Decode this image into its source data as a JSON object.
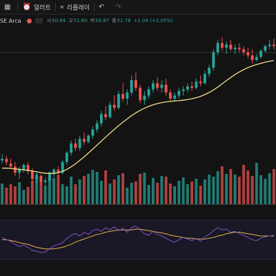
{
  "toolbar": {
    "alerts_label": "얼러트",
    "replay_label": "리플레이",
    "icons": [
      "indicators-icon",
      "alarm-clock-icon",
      "rewind-icon",
      "undo-icon",
      "redo-icon"
    ]
  },
  "legend": {
    "title": "SE Arca",
    "open_label": "시",
    "open_value": "50.94",
    "high_label": "고",
    "high_value": "51.80",
    "low_label": "저",
    "low_value": "50.87",
    "close_label": "종",
    "close_value": "51.78",
    "change": "+1.04 (+2.05%)"
  },
  "colors": {
    "up": "#26a69a",
    "down": "#ef5350",
    "ma": "#f5e08c",
    "oscillator": "#7e57c2",
    "signal": "#e6b84a"
  },
  "chart_data": {
    "type": "candlestick",
    "candles": [
      [
        44.4,
        44.8,
        44.2,
        44.5
      ],
      [
        44.5,
        44.7,
        44.1,
        44.3
      ],
      [
        44.2,
        44.5,
        43.9,
        44.0
      ],
      [
        44.0,
        44.3,
        43.4,
        43.6
      ],
      [
        43.6,
        44.0,
        43.2,
        43.8
      ],
      [
        43.8,
        44.2,
        43.6,
        44.1
      ],
      [
        44.1,
        44.3,
        43.5,
        43.7
      ],
      [
        43.7,
        43.9,
        43.0,
        43.2
      ],
      [
        43.2,
        43.6,
        42.9,
        43.4
      ],
      [
        43.4,
        43.5,
        42.8,
        43.0
      ],
      [
        43.0,
        43.3,
        42.8,
        43.1
      ],
      [
        43.1,
        43.6,
        43.0,
        43.5
      ],
      [
        43.5,
        43.9,
        43.3,
        43.8
      ],
      [
        43.8,
        44.0,
        43.4,
        43.6
      ],
      [
        43.6,
        44.4,
        43.5,
        44.3
      ],
      [
        44.3,
        45.0,
        44.1,
        44.9
      ],
      [
        44.9,
        45.7,
        44.7,
        45.5
      ],
      [
        45.5,
        45.8,
        45.0,
        45.2
      ],
      [
        45.2,
        46.0,
        45.0,
        45.8
      ],
      [
        45.8,
        46.2,
        45.4,
        45.6
      ],
      [
        45.6,
        46.1,
        45.5,
        46.0
      ],
      [
        46.0,
        46.6,
        45.8,
        46.4
      ],
      [
        46.4,
        47.0,
        46.2,
        46.8
      ],
      [
        46.8,
        47.6,
        46.6,
        47.4
      ],
      [
        47.4,
        47.9,
        47.0,
        47.2
      ],
      [
        47.2,
        48.2,
        47.1,
        48.0
      ],
      [
        48.0,
        48.6,
        47.6,
        47.8
      ],
      [
        47.8,
        48.9,
        47.7,
        48.7
      ],
      [
        48.7,
        49.4,
        48.2,
        48.4
      ],
      [
        48.4,
        49.0,
        48.0,
        48.8
      ],
      [
        48.8,
        49.9,
        48.6,
        49.6
      ],
      [
        49.6,
        50.1,
        48.9,
        49.1
      ],
      [
        49.1,
        49.3,
        48.1,
        48.3
      ],
      [
        48.3,
        48.9,
        48.0,
        48.6
      ],
      [
        48.6,
        49.2,
        48.4,
        49.0
      ],
      [
        49.0,
        49.6,
        48.8,
        49.4
      ],
      [
        49.4,
        49.8,
        48.9,
        49.1
      ],
      [
        49.1,
        49.6,
        48.8,
        49.3
      ],
      [
        49.3,
        49.7,
        48.6,
        48.8
      ],
      [
        48.8,
        49.0,
        48.2,
        48.4
      ],
      [
        48.4,
        48.8,
        48.2,
        48.6
      ],
      [
        48.6,
        49.1,
        48.4,
        48.9
      ],
      [
        48.9,
        49.2,
        48.6,
        49.0
      ],
      [
        49.0,
        49.4,
        48.8,
        49.2
      ],
      [
        49.2,
        49.5,
        48.9,
        49.1
      ],
      [
        49.1,
        49.7,
        49.0,
        49.5
      ],
      [
        49.5,
        49.9,
        49.2,
        49.4
      ],
      [
        49.4,
        50.2,
        49.3,
        50.0
      ],
      [
        50.0,
        50.6,
        49.8,
        50.4
      ],
      [
        50.4,
        51.6,
        50.2,
        51.4
      ],
      [
        51.4,
        52.2,
        51.2,
        52.0
      ],
      [
        52.0,
        52.4,
        51.5,
        51.7
      ],
      [
        51.7,
        52.1,
        51.3,
        51.9
      ],
      [
        51.9,
        52.2,
        51.5,
        51.6
      ],
      [
        51.6,
        51.9,
        51.3,
        51.7
      ],
      [
        51.7,
        52.0,
        51.4,
        51.6
      ],
      [
        51.6,
        51.8,
        51.2,
        51.4
      ],
      [
        51.4,
        51.7,
        51.0,
        51.2
      ],
      [
        51.2,
        51.6,
        50.7,
        50.9
      ],
      [
        50.9,
        51.3,
        50.8,
        51.1
      ],
      [
        51.1,
        51.6,
        51.0,
        51.5
      ],
      [
        51.5,
        51.9,
        51.4,
        51.8
      ],
      [
        51.8,
        52.2,
        51.6,
        51.9
      ],
      [
        51.9,
        52.3,
        51.6,
        51.8
      ]
    ],
    "moving_average": [
      43.9,
      43.9,
      43.88,
      43.85,
      43.82,
      43.79,
      43.75,
      43.71,
      43.66,
      43.61,
      43.57,
      43.55,
      43.56,
      43.6,
      43.69,
      43.82,
      43.99,
      44.18,
      44.4,
      44.63,
      44.88,
      45.13,
      45.39,
      45.65,
      45.91,
      46.16,
      46.41,
      46.65,
      46.88,
      47.09,
      47.3,
      47.48,
      47.64,
      47.78,
      47.9,
      48.0,
      48.08,
      48.14,
      48.19,
      48.22,
      48.25,
      48.27,
      48.3,
      48.34,
      48.39,
      48.46,
      48.55,
      48.66,
      48.8,
      48.96,
      49.15,
      49.36,
      49.57,
      49.77,
      49.96,
      50.13,
      50.28,
      50.41,
      50.52,
      50.61,
      50.69,
      50.76,
      50.82,
      50.87
    ],
    "volume": [
      30,
      24,
      29,
      26,
      32,
      21,
      25,
      34,
      44,
      33,
      27,
      47,
      38,
      42,
      29,
      26,
      40,
      29,
      36,
      41,
      44,
      50,
      47,
      34,
      49,
      30,
      36,
      42,
      45,
      24,
      31,
      33,
      44,
      46,
      28,
      38,
      31,
      41,
      40,
      30,
      26,
      34,
      39,
      29,
      33,
      37,
      27,
      36,
      43,
      40,
      48,
      55,
      44,
      51,
      43,
      40,
      57,
      49,
      41,
      60,
      42,
      37,
      45,
      51
    ],
    "oscillator": [
      53,
      50,
      48,
      44,
      41,
      43,
      40,
      36,
      35,
      33,
      34,
      38,
      42,
      44,
      46,
      52,
      56,
      58,
      55,
      60,
      57,
      62,
      64,
      61,
      66,
      63,
      67,
      62,
      65,
      60,
      66,
      68,
      63,
      58,
      56,
      61,
      57,
      55,
      52,
      49,
      47,
      50,
      53,
      51,
      49,
      52,
      48,
      54,
      57,
      62,
      66,
      63,
      64,
      60,
      61,
      58,
      56,
      53,
      50,
      49,
      52,
      54,
      55,
      56
    ],
    "signal": [
      50,
      50,
      49,
      48,
      46,
      45,
      44,
      42,
      40,
      39,
      38,
      38,
      38,
      39,
      40,
      42,
      44,
      47,
      49,
      51,
      53,
      55,
      57,
      58,
      60,
      61,
      62,
      63,
      63,
      63,
      63,
      64,
      64,
      63,
      62,
      61,
      60,
      59,
      58,
      56,
      55,
      54,
      53,
      52,
      52,
      51,
      51,
      51,
      52,
      53,
      55,
      56,
      58,
      59,
      60,
      60,
      59,
      58,
      57,
      56,
      55,
      55,
      55,
      55
    ]
  }
}
